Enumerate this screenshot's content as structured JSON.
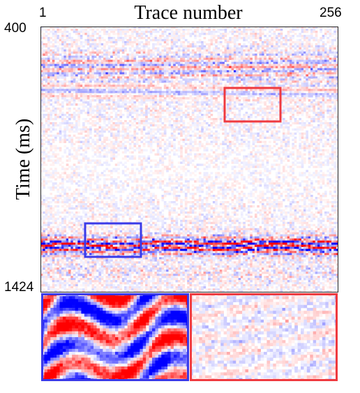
{
  "figure": {
    "title": "Trace number",
    "ylabel": "Time (ms)",
    "x_tick_start": "1",
    "x_tick_end": "256",
    "y_tick_start": "400",
    "y_tick_end": "1424"
  },
  "colors": {
    "positive": "#ff0000",
    "negative": "#0000ff",
    "background": "#ffffff",
    "blue_box": "#3a3ae8",
    "red_box": "#ef3a3f"
  },
  "boxes": [
    {
      "name": "blue-region-box",
      "color": "blue",
      "trace_range": [
        40,
        87
      ],
      "time_range": [
        1106,
        1228
      ],
      "zoom": "zoom-panel-blue"
    },
    {
      "name": "red-region-box",
      "color": "red",
      "trace_range": [
        160,
        207
      ],
      "time_range": [
        632,
        754
      ],
      "zoom": "zoom-panel-red"
    }
  ]
}
